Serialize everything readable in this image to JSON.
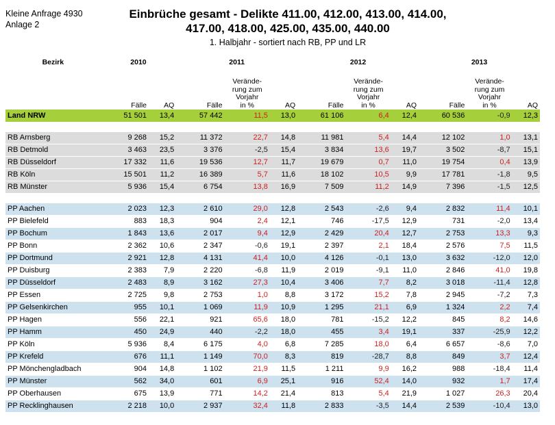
{
  "meta": {
    "line1": "Kleine Anfrage 4930",
    "line2": "Anlage 2"
  },
  "title": {
    "line1": "Einbrüche gesamt - Delikte 411.00, 412.00, 413.00, 414.00,",
    "line2": "417.00, 418.00, 425.00, 435.00, 440.00"
  },
  "subtitle": "1. Halbjahr - sortiert nach RB, PP und LR",
  "headers": {
    "bezirk": "Bezirk",
    "years": [
      "2010",
      "2011",
      "2012",
      "2013"
    ],
    "faelle": "Fälle",
    "aq": "AQ",
    "change": "Verände-\nrung zum\nVorjahr\nin %"
  },
  "colors": {
    "total": "#a5cf3b",
    "rb": "#dcdcdc",
    "pp": "#cde1ee",
    "positive_change": "#cc1f1f"
  },
  "total": {
    "name": "Land NRW",
    "v": [
      "51 501",
      "13,4",
      "57 442",
      "11,5",
      "13,0",
      "61 106",
      "6,4",
      "12,4",
      "60 536",
      "-0,9",
      "12,3"
    ]
  },
  "rb_rows": [
    {
      "name": "RB Arnsberg",
      "v": [
        "9 268",
        "15,2",
        "11 372",
        "22,7",
        "14,8",
        "11 981",
        "5,4",
        "14,4",
        "12 102",
        "1,0",
        "13,1"
      ]
    },
    {
      "name": "RB Detmold",
      "v": [
        "3 463",
        "23,5",
        "3 376",
        "-2,5",
        "15,4",
        "3 834",
        "13,6",
        "19,7",
        "3 502",
        "-8,7",
        "15,1"
      ]
    },
    {
      "name": "RB Düsseldorf",
      "v": [
        "17 332",
        "11,6",
        "19 536",
        "12,7",
        "11,7",
        "19 679",
        "0,7",
        "11,0",
        "19 754",
        "0,4",
        "13,9"
      ]
    },
    {
      "name": "RB Köln",
      "v": [
        "15 501",
        "11,2",
        "16 389",
        "5,7",
        "11,6",
        "18 102",
        "10,5",
        "9,9",
        "17 781",
        "-1,8",
        "9,5"
      ]
    },
    {
      "name": "RB Münster",
      "v": [
        "5 936",
        "15,4",
        "6 754",
        "13,8",
        "16,9",
        "7 509",
        "11,2",
        "14,9",
        "7 396",
        "-1,5",
        "12,5"
      ]
    }
  ],
  "pp_rows": [
    {
      "name": "PP Aachen",
      "v": [
        "2 023",
        "12,3",
        "2 610",
        "29,0",
        "12,8",
        "2 543",
        "-2,6",
        "9,4",
        "2 832",
        "11,4",
        "10,1"
      ]
    },
    {
      "name": "PP Bielefeld",
      "v": [
        "883",
        "18,3",
        "904",
        "2,4",
        "12,1",
        "746",
        "-17,5",
        "12,9",
        "731",
        "-2,0",
        "13,4"
      ]
    },
    {
      "name": "PP Bochum",
      "v": [
        "1 843",
        "13,6",
        "2 017",
        "9,4",
        "12,9",
        "2 429",
        "20,4",
        "12,7",
        "2 753",
        "13,3",
        "9,3"
      ]
    },
    {
      "name": "PP Bonn",
      "v": [
        "2 362",
        "10,6",
        "2 347",
        "-0,6",
        "19,1",
        "2 397",
        "2,1",
        "18,4",
        "2 576",
        "7,5",
        "11,5"
      ]
    },
    {
      "name": "PP Dortmund",
      "v": [
        "2 921",
        "12,8",
        "4 131",
        "41,4",
        "10,0",
        "4 126",
        "-0,1",
        "13,0",
        "3 632",
        "-12,0",
        "12,0"
      ]
    },
    {
      "name": "PP Duisburg",
      "v": [
        "2 383",
        "7,9",
        "2 220",
        "-6,8",
        "11,9",
        "2 019",
        "-9,1",
        "11,0",
        "2 846",
        "41,0",
        "19,8"
      ]
    },
    {
      "name": "PP Düsseldorf",
      "v": [
        "2 483",
        "8,9",
        "3 162",
        "27,3",
        "10,4",
        "3 406",
        "7,7",
        "8,2",
        "3 018",
        "-11,4",
        "12,8"
      ]
    },
    {
      "name": "PP Essen",
      "v": [
        "2 725",
        "9,8",
        "2 753",
        "1,0",
        "8,8",
        "3 172",
        "15,2",
        "7,8",
        "2 945",
        "-7,2",
        "7,3"
      ]
    },
    {
      "name": "PP Gelsenkirchen",
      "v": [
        "955",
        "10,1",
        "1 069",
        "11,9",
        "10,9",
        "1 295",
        "21,1",
        "6,9",
        "1 324",
        "2,2",
        "7,4"
      ]
    },
    {
      "name": "PP Hagen",
      "v": [
        "556",
        "22,1",
        "921",
        "65,6",
        "18,0",
        "781",
        "-15,2",
        "12,2",
        "845",
        "8,2",
        "14,6"
      ]
    },
    {
      "name": "PP Hamm",
      "v": [
        "450",
        "24,9",
        "440",
        "-2,2",
        "18,0",
        "455",
        "3,4",
        "19,1",
        "337",
        "-25,9",
        "12,2"
      ]
    },
    {
      "name": "PP Köln",
      "v": [
        "5 936",
        "8,4",
        "6 175",
        "4,0",
        "6,8",
        "7 285",
        "18,0",
        "6,4",
        "6 657",
        "-8,6",
        "7,0"
      ]
    },
    {
      "name": "PP Krefeld",
      "v": [
        "676",
        "11,1",
        "1 149",
        "70,0",
        "8,3",
        "819",
        "-28,7",
        "8,8",
        "849",
        "3,7",
        "12,4"
      ]
    },
    {
      "name": "PP Mönchengladbach",
      "v": [
        "904",
        "14,8",
        "1 102",
        "21,9",
        "11,5",
        "1 211",
        "9,9",
        "16,2",
        "988",
        "-18,4",
        "11,4"
      ]
    },
    {
      "name": "PP Münster",
      "v": [
        "562",
        "34,0",
        "601",
        "6,9",
        "25,1",
        "916",
        "52,4",
        "14,0",
        "932",
        "1,7",
        "17,4"
      ]
    },
    {
      "name": "PP Oberhausen",
      "v": [
        "675",
        "13,9",
        "771",
        "14,2",
        "21,4",
        "813",
        "5,4",
        "21,9",
        "1 027",
        "26,3",
        "20,4"
      ]
    },
    {
      "name": "PP Recklinghausen",
      "v": [
        "2 218",
        "10,0",
        "2 937",
        "32,4",
        "11,8",
        "2 833",
        "-3,5",
        "14,4",
        "2 539",
        "-10,4",
        "13,0"
      ]
    }
  ]
}
